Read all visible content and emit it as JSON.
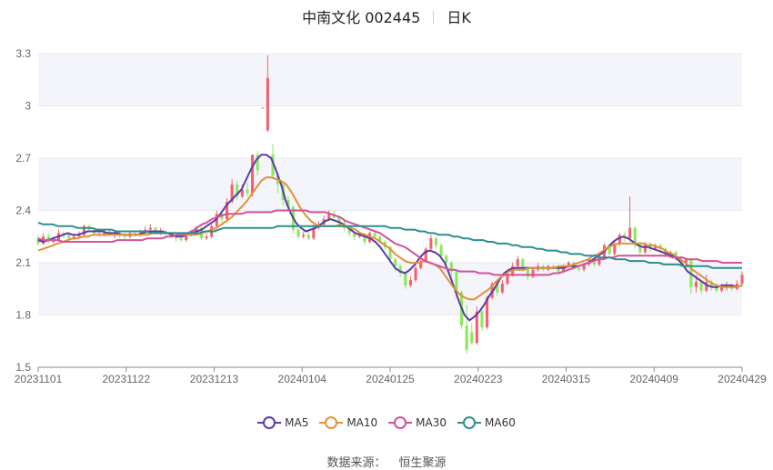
{
  "header": {
    "title": "中南文化 002445",
    "period": "日K"
  },
  "source": {
    "label": "数据来源：",
    "value": "恒生聚源"
  },
  "colors": {
    "up": "#f6606d",
    "down": "#8be75c",
    "grid": "#e6e9f2",
    "band": "#f4f5fa",
    "axis": "#8a8a8a"
  },
  "legend": {
    "items": [
      {
        "name": "MA5",
        "color": "#5b3ba6"
      },
      {
        "name": "MA10",
        "color": "#e0913a"
      },
      {
        "name": "MA30",
        "color": "#d2519d"
      },
      {
        "name": "MA60",
        "color": "#2f8f8f"
      }
    ]
  },
  "chart_data": {
    "type": "candlestick",
    "title": "中南文化 002445 日K",
    "ylim": [
      1.5,
      3.3
    ],
    "yticks": [
      "1.5",
      "1.8",
      "2.1",
      "2.4",
      "2.7",
      "3",
      "3.3"
    ],
    "xticks": [
      "20231101",
      "20231122",
      "20231213",
      "20240104",
      "20240125",
      "20240223",
      "20240315",
      "20240409",
      "20240429"
    ],
    "candles": [
      [
        2.24,
        2.21,
        2.26,
        2.2
      ],
      [
        2.21,
        2.25,
        2.27,
        2.2
      ],
      [
        2.25,
        2.22,
        2.27,
        2.21
      ],
      [
        2.22,
        2.23,
        2.25,
        2.21
      ],
      [
        2.23,
        2.27,
        2.29,
        2.22
      ],
      [
        2.27,
        2.26,
        2.28,
        2.24
      ],
      [
        2.26,
        2.24,
        2.27,
        2.23
      ],
      [
        2.24,
        2.25,
        2.26,
        2.23
      ],
      [
        2.25,
        2.26,
        2.28,
        2.24
      ],
      [
        2.26,
        2.31,
        2.32,
        2.25
      ],
      [
        2.31,
        2.29,
        2.32,
        2.28
      ],
      [
        2.29,
        2.27,
        2.3,
        2.26
      ],
      [
        2.27,
        2.26,
        2.28,
        2.25
      ],
      [
        2.26,
        2.28,
        2.29,
        2.25
      ],
      [
        2.28,
        2.26,
        2.29,
        2.25
      ],
      [
        2.26,
        2.27,
        2.28,
        2.24
      ],
      [
        2.27,
        2.26,
        2.28,
        2.24
      ],
      [
        2.26,
        2.25,
        2.27,
        2.23
      ],
      [
        2.25,
        2.27,
        2.28,
        2.24
      ],
      [
        2.27,
        2.26,
        2.28,
        2.25
      ],
      [
        2.26,
        2.27,
        2.29,
        2.25
      ],
      [
        2.27,
        2.29,
        2.31,
        2.26
      ],
      [
        2.29,
        2.3,
        2.32,
        2.28
      ],
      [
        2.3,
        2.27,
        2.31,
        2.26
      ],
      [
        2.27,
        2.28,
        2.3,
        2.26
      ],
      [
        2.28,
        2.27,
        2.29,
        2.25
      ],
      [
        2.27,
        2.26,
        2.28,
        2.25
      ],
      [
        2.26,
        2.24,
        2.27,
        2.22
      ],
      [
        2.24,
        2.23,
        2.26,
        2.22
      ],
      [
        2.23,
        2.26,
        2.27,
        2.22
      ],
      [
        2.26,
        2.28,
        2.29,
        2.25
      ],
      [
        2.28,
        2.3,
        2.31,
        2.26
      ],
      [
        2.3,
        2.24,
        2.31,
        2.23
      ],
      [
        2.24,
        2.25,
        2.27,
        2.23
      ],
      [
        2.25,
        2.31,
        2.32,
        2.24
      ],
      [
        2.31,
        2.38,
        2.4,
        2.3
      ],
      [
        2.38,
        2.35,
        2.4,
        2.33
      ],
      [
        2.35,
        2.45,
        2.47,
        2.34
      ],
      [
        2.45,
        2.55,
        2.58,
        2.44
      ],
      [
        2.55,
        2.48,
        2.57,
        2.46
      ],
      [
        2.48,
        2.52,
        2.55,
        2.47
      ],
      [
        2.52,
        2.5,
        2.56,
        2.48
      ],
      [
        2.5,
        2.72,
        2.72,
        2.48
      ],
      [
        2.72,
        2.63,
        2.74,
        2.6
      ],
      [
        2.99,
        2.99,
        2.99,
        2.99
      ],
      [
        2.86,
        3.16,
        3.29,
        2.85
      ],
      [
        2.72,
        2.6,
        2.78,
        2.58
      ],
      [
        2.6,
        2.55,
        2.62,
        2.5
      ],
      [
        2.55,
        2.46,
        2.56,
        2.43
      ],
      [
        2.46,
        2.42,
        2.48,
        2.4
      ],
      [
        2.42,
        2.29,
        2.43,
        2.27
      ],
      [
        2.29,
        2.25,
        2.3,
        2.24
      ],
      [
        2.25,
        2.26,
        2.28,
        2.24
      ],
      [
        2.26,
        2.24,
        2.28,
        2.23
      ],
      [
        2.24,
        2.3,
        2.32,
        2.23
      ],
      [
        2.3,
        2.32,
        2.34,
        2.29
      ],
      [
        2.32,
        2.35,
        2.37,
        2.31
      ],
      [
        2.35,
        2.38,
        2.4,
        2.34
      ],
      [
        2.38,
        2.36,
        2.4,
        2.35
      ],
      [
        2.36,
        2.33,
        2.37,
        2.31
      ],
      [
        2.33,
        2.3,
        2.34,
        2.28
      ],
      [
        2.3,
        2.27,
        2.31,
        2.25
      ],
      [
        2.27,
        2.25,
        2.28,
        2.23
      ],
      [
        2.25,
        2.26,
        2.28,
        2.24
      ],
      [
        2.26,
        2.22,
        2.27,
        2.2
      ],
      [
        2.22,
        2.27,
        2.28,
        2.21
      ],
      [
        2.27,
        2.25,
        2.28,
        2.24
      ],
      [
        2.25,
        2.22,
        2.26,
        2.21
      ],
      [
        2.22,
        2.19,
        2.23,
        2.17
      ],
      [
        2.19,
        2.12,
        2.2,
        2.1
      ],
      [
        2.12,
        2.08,
        2.13,
        2.05
      ],
      [
        2.08,
        2.04,
        2.09,
        2.02
      ],
      [
        2.04,
        1.97,
        2.05,
        1.95
      ],
      [
        1.97,
        2.0,
        2.02,
        1.96
      ],
      [
        2.0,
        2.07,
        2.08,
        1.99
      ],
      [
        2.07,
        2.11,
        2.13,
        2.06
      ],
      [
        2.11,
        2.18,
        2.19,
        2.1
      ],
      [
        2.18,
        2.24,
        2.26,
        2.17
      ],
      [
        2.24,
        2.2,
        2.25,
        2.18
      ],
      [
        2.2,
        2.14,
        2.21,
        2.12
      ],
      [
        2.14,
        2.1,
        2.15,
        2.07
      ],
      [
        2.1,
        2.05,
        2.11,
        2.02
      ],
      [
        2.05,
        1.93,
        2.06,
        1.9
      ],
      [
        1.93,
        1.74,
        1.94,
        1.72
      ],
      [
        1.74,
        1.6,
        1.86,
        1.58
      ],
      [
        1.7,
        1.64,
        1.75,
        1.63
      ],
      [
        1.64,
        1.82,
        1.85,
        1.63
      ],
      [
        1.82,
        1.73,
        1.83,
        1.71
      ],
      [
        1.73,
        1.9,
        1.91,
        1.72
      ],
      [
        1.9,
        1.98,
        1.99,
        1.89
      ],
      [
        1.98,
        1.93,
        2.0,
        1.91
      ],
      [
        1.93,
        1.98,
        2.0,
        1.92
      ],
      [
        1.98,
        2.03,
        2.05,
        1.97
      ],
      [
        2.03,
        2.08,
        2.1,
        2.02
      ],
      [
        2.08,
        2.12,
        2.14,
        2.07
      ],
      [
        2.12,
        2.07,
        2.13,
        2.05
      ],
      [
        2.07,
        2.02,
        2.08,
        2.0
      ],
      [
        2.02,
        2.06,
        2.07,
        2.01
      ],
      [
        2.06,
        2.08,
        2.1,
        2.05
      ],
      [
        2.08,
        2.06,
        2.09,
        2.05
      ],
      [
        2.06,
        2.08,
        2.09,
        2.05
      ],
      [
        2.08,
        2.07,
        2.09,
        2.06
      ],
      [
        2.07,
        2.05,
        2.08,
        2.04
      ],
      [
        2.05,
        2.08,
        2.09,
        2.04
      ],
      [
        2.08,
        2.1,
        2.11,
        2.07
      ],
      [
        2.1,
        2.07,
        2.11,
        2.06
      ],
      [
        2.07,
        2.06,
        2.08,
        2.05
      ],
      [
        2.06,
        2.09,
        2.1,
        2.05
      ],
      [
        2.09,
        2.12,
        2.13,
        2.08
      ],
      [
        2.12,
        2.09,
        2.13,
        2.08
      ],
      [
        2.09,
        2.13,
        2.14,
        2.08
      ],
      [
        2.13,
        2.2,
        2.21,
        2.12
      ],
      [
        2.2,
        2.15,
        2.21,
        2.14
      ],
      [
        2.15,
        2.21,
        2.23,
        2.14
      ],
      [
        2.21,
        2.26,
        2.27,
        2.2
      ],
      [
        2.26,
        2.24,
        2.28,
        2.22
      ],
      [
        2.24,
        2.3,
        2.48,
        2.23
      ],
      [
        2.3,
        2.2,
        2.31,
        2.18
      ],
      [
        2.2,
        2.16,
        2.22,
        2.14
      ],
      [
        2.16,
        2.21,
        2.22,
        2.15
      ],
      [
        2.21,
        2.18,
        2.22,
        2.16
      ],
      [
        2.18,
        2.2,
        2.21,
        2.17
      ],
      [
        2.2,
        2.18,
        2.21,
        2.16
      ],
      [
        2.18,
        2.14,
        2.19,
        2.13
      ],
      [
        2.14,
        2.16,
        2.17,
        2.13
      ],
      [
        2.16,
        2.13,
        2.17,
        2.11
      ],
      [
        2.13,
        2.1,
        2.14,
        2.08
      ],
      [
        2.1,
        2.12,
        2.13,
        2.08
      ],
      [
        2.12,
        1.96,
        2.13,
        1.92
      ],
      [
        1.96,
        1.99,
        2.03,
        1.93
      ],
      [
        1.99,
        1.94,
        2.0,
        1.92
      ],
      [
        1.94,
        1.99,
        2.03,
        1.93
      ],
      [
        1.99,
        1.96,
        2.0,
        1.94
      ],
      [
        1.96,
        1.94,
        1.97,
        1.93
      ],
      [
        1.94,
        1.96,
        1.98,
        1.93
      ],
      [
        1.96,
        1.97,
        1.99,
        1.94
      ],
      [
        1.97,
        1.95,
        1.98,
        1.94
      ],
      [
        1.95,
        1.98,
        2.0,
        1.94
      ],
      [
        1.98,
        2.03,
        2.05,
        1.97
      ]
    ],
    "ma": {
      "MA5": [
        2.23,
        2.22,
        2.23,
        2.24,
        2.25,
        2.26,
        2.27,
        2.26,
        2.26,
        2.27,
        2.28,
        2.28,
        2.28,
        2.28,
        2.27,
        2.27,
        2.27,
        2.26,
        2.26,
        2.26,
        2.26,
        2.27,
        2.28,
        2.28,
        2.28,
        2.28,
        2.27,
        2.26,
        2.25,
        2.25,
        2.26,
        2.27,
        2.28,
        2.29,
        2.31,
        2.33,
        2.35,
        2.39,
        2.43,
        2.46,
        2.49,
        2.52,
        2.58,
        2.64,
        2.69,
        2.72,
        2.72,
        2.7,
        2.63,
        2.55,
        2.45,
        2.38,
        2.33,
        2.3,
        2.28,
        2.29,
        2.3,
        2.32,
        2.34,
        2.35,
        2.34,
        2.33,
        2.31,
        2.29,
        2.27,
        2.26,
        2.25,
        2.24,
        2.22,
        2.19,
        2.15,
        2.11,
        2.07,
        2.05,
        2.04,
        2.06,
        2.09,
        2.13,
        2.16,
        2.17,
        2.16,
        2.14,
        2.1,
        2.03,
        1.95,
        1.87,
        1.8,
        1.77,
        1.79,
        1.82,
        1.86,
        1.91,
        1.95,
        2.0,
        2.04,
        2.06,
        2.07,
        2.07,
        2.07,
        2.07,
        2.07,
        2.07,
        2.07,
        2.07,
        2.07,
        2.07,
        2.07,
        2.08,
        2.08,
        2.08,
        2.09,
        2.1,
        2.12,
        2.14,
        2.16,
        2.19,
        2.22,
        2.24,
        2.25,
        2.24,
        2.22,
        2.2,
        2.19,
        2.19,
        2.18,
        2.17,
        2.16,
        2.15,
        2.14,
        2.12,
        2.09,
        2.05,
        2.03,
        2.01,
        1.99,
        1.97,
        1.96,
        1.96,
        1.97,
        1.97,
        1.97,
        1.96,
        1.97
      ],
      "MA10": [
        2.17,
        2.18,
        2.19,
        2.2,
        2.21,
        2.22,
        2.23,
        2.24,
        2.24,
        2.25,
        2.25,
        2.26,
        2.26,
        2.26,
        2.26,
        2.26,
        2.26,
        2.26,
        2.26,
        2.26,
        2.26,
        2.26,
        2.26,
        2.27,
        2.27,
        2.27,
        2.27,
        2.27,
        2.27,
        2.26,
        2.26,
        2.26,
        2.26,
        2.27,
        2.28,
        2.29,
        2.3,
        2.32,
        2.34,
        2.36,
        2.39,
        2.42,
        2.45,
        2.49,
        2.53,
        2.57,
        2.59,
        2.59,
        2.58,
        2.57,
        2.55,
        2.51,
        2.46,
        2.41,
        2.37,
        2.34,
        2.32,
        2.31,
        2.31,
        2.31,
        2.31,
        2.32,
        2.31,
        2.3,
        2.29,
        2.27,
        2.26,
        2.25,
        2.24,
        2.22,
        2.2,
        2.18,
        2.15,
        2.13,
        2.11,
        2.1,
        2.1,
        2.1,
        2.11,
        2.1,
        2.09,
        2.07,
        2.03,
        1.99,
        1.95,
        1.92,
        1.9,
        1.89,
        1.89,
        1.91,
        1.93,
        1.95,
        1.98,
        2.01,
        2.03,
        2.05,
        2.06,
        2.06,
        2.06,
        2.07,
        2.07,
        2.07,
        2.07,
        2.07,
        2.07,
        2.08,
        2.08,
        2.08,
        2.09,
        2.1,
        2.11,
        2.12,
        2.14,
        2.15,
        2.17,
        2.19,
        2.2,
        2.21,
        2.21,
        2.21,
        2.21,
        2.21,
        2.21,
        2.2,
        2.2,
        2.19,
        2.18,
        2.16,
        2.15,
        2.13,
        2.11,
        2.09,
        2.06,
        2.04,
        2.02,
        2.0,
        1.98,
        1.97,
        1.96,
        1.96,
        1.96,
        1.96,
        1.97
      ],
      "MA30": [
        2.24,
        2.23,
        2.23,
        2.23,
        2.23,
        2.22,
        2.22,
        2.22,
        2.22,
        2.22,
        2.22,
        2.22,
        2.22,
        2.22,
        2.22,
        2.22,
        2.23,
        2.23,
        2.23,
        2.23,
        2.23,
        2.23,
        2.24,
        2.24,
        2.24,
        2.24,
        2.25,
        2.25,
        2.26,
        2.26,
        2.27,
        2.28,
        2.3,
        2.32,
        2.33,
        2.35,
        2.36,
        2.37,
        2.38,
        2.38,
        2.38,
        2.38,
        2.39,
        2.39,
        2.39,
        2.39,
        2.39,
        2.39,
        2.4,
        2.4,
        2.4,
        2.4,
        2.4,
        2.4,
        2.4,
        2.39,
        2.39,
        2.39,
        2.39,
        2.38,
        2.37,
        2.36,
        2.34,
        2.33,
        2.32,
        2.31,
        2.3,
        2.29,
        2.28,
        2.27,
        2.25,
        2.23,
        2.21,
        2.2,
        2.19,
        2.17,
        2.15,
        2.13,
        2.11,
        2.1,
        2.09,
        2.08,
        2.07,
        2.06,
        2.06,
        2.05,
        2.05,
        2.05,
        2.05,
        2.04,
        2.04,
        2.04,
        2.03,
        2.03,
        2.03,
        2.03,
        2.03,
        2.03,
        2.03,
        2.03,
        2.03,
        2.03,
        2.03,
        2.03,
        2.04,
        2.04,
        2.05,
        2.06,
        2.07,
        2.08,
        2.09,
        2.1,
        2.11,
        2.12,
        2.12,
        2.13,
        2.13,
        2.14,
        2.14,
        2.14,
        2.14,
        2.14,
        2.14,
        2.14,
        2.14,
        2.14,
        2.14,
        2.14,
        2.13,
        2.13,
        2.13,
        2.12,
        2.12,
        2.12,
        2.11,
        2.11,
        2.11,
        2.11,
        2.1,
        2.1,
        2.1,
        2.1,
        2.1
      ],
      "MA60": [
        2.33,
        2.32,
        2.32,
        2.32,
        2.31,
        2.31,
        2.31,
        2.31,
        2.3,
        2.3,
        2.3,
        2.3,
        2.29,
        2.29,
        2.29,
        2.29,
        2.28,
        2.28,
        2.28,
        2.28,
        2.28,
        2.28,
        2.28,
        2.27,
        2.27,
        2.27,
        2.27,
        2.27,
        2.27,
        2.27,
        2.27,
        2.27,
        2.27,
        2.27,
        2.28,
        2.28,
        2.28,
        2.29,
        2.3,
        2.3,
        2.3,
        2.3,
        2.3,
        2.3,
        2.3,
        2.3,
        2.3,
        2.3,
        2.3,
        2.31,
        2.31,
        2.31,
        2.31,
        2.31,
        2.31,
        2.31,
        2.31,
        2.31,
        2.31,
        2.31,
        2.31,
        2.31,
        2.31,
        2.31,
        2.31,
        2.31,
        2.31,
        2.31,
        2.31,
        2.31,
        2.31,
        2.31,
        2.3,
        2.3,
        2.3,
        2.29,
        2.29,
        2.29,
        2.28,
        2.28,
        2.27,
        2.27,
        2.26,
        2.26,
        2.26,
        2.25,
        2.25,
        2.24,
        2.24,
        2.23,
        2.23,
        2.23,
        2.22,
        2.22,
        2.21,
        2.21,
        2.21,
        2.2,
        2.2,
        2.19,
        2.19,
        2.19,
        2.18,
        2.18,
        2.17,
        2.17,
        2.17,
        2.16,
        2.16,
        2.15,
        2.15,
        2.15,
        2.14,
        2.14,
        2.14,
        2.13,
        2.13,
        2.13,
        2.12,
        2.12,
        2.12,
        2.11,
        2.11,
        2.11,
        2.11,
        2.1,
        2.1,
        2.1,
        2.09,
        2.09,
        2.09,
        2.09,
        2.08,
        2.08,
        2.08,
        2.08,
        2.08,
        2.08,
        2.07,
        2.07,
        2.07,
        2.07,
        2.07,
        2.07,
        2.07
      ]
    }
  }
}
